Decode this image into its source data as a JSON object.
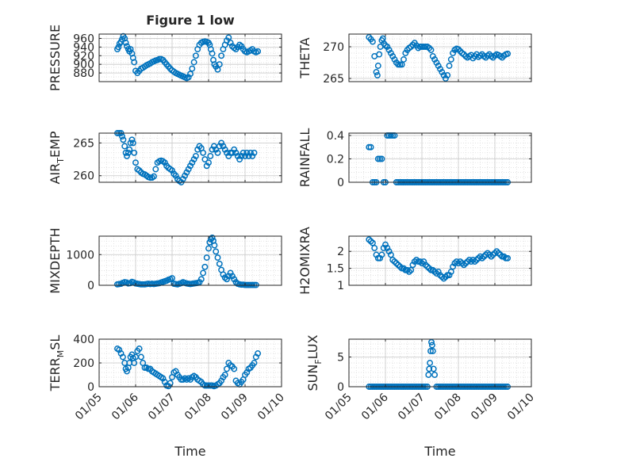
{
  "figure": {
    "title": "Figure 1 low",
    "marker_color": "#0072BD",
    "grid": true,
    "x_ticks": [
      "01/05",
      "01/06",
      "01/07",
      "01/08",
      "01/09",
      "01/10"
    ],
    "x_label": "Time"
  },
  "chart_data": [
    {
      "type": "scatter",
      "panel": "PRESSURE",
      "ylabel": "PRESSURE",
      "ylim": [
        860,
        970
      ],
      "yticks": [
        880,
        900,
        920,
        940,
        960
      ],
      "xlim": [
        0,
        5
      ],
      "x": [
        0.5,
        0.53,
        0.56,
        0.6,
        0.63,
        0.66,
        0.7,
        0.73,
        0.76,
        0.8,
        0.83,
        0.86,
        0.9,
        0.93,
        0.96,
        1.0,
        1.05,
        1.1,
        1.15,
        1.2,
        1.25,
        1.3,
        1.35,
        1.4,
        1.45,
        1.5,
        1.55,
        1.6,
        1.65,
        1.7,
        1.75,
        1.8,
        1.85,
        1.9,
        1.95,
        2.0,
        2.05,
        2.1,
        2.15,
        2.2,
        2.25,
        2.3,
        2.35,
        2.4,
        2.45,
        2.5,
        2.55,
        2.6,
        2.65,
        2.7,
        2.75,
        2.8,
        2.85,
        2.9,
        2.95,
        3.0,
        3.03,
        3.06,
        3.1,
        3.13,
        3.16,
        3.2,
        3.25,
        3.3,
        3.35,
        3.4,
        3.45,
        3.5,
        3.55,
        3.6,
        3.65,
        3.7,
        3.75,
        3.8,
        3.85,
        3.9,
        3.95,
        4.0,
        4.05,
        4.1,
        4.15,
        4.2,
        4.25,
        4.3,
        4.35
      ],
      "y": [
        935,
        940,
        948,
        952,
        958,
        965,
        960,
        950,
        942,
        935,
        930,
        935,
        925,
        915,
        905,
        885,
        880,
        885,
        890,
        892,
        895,
        898,
        900,
        902,
        905,
        907,
        909,
        910,
        912,
        912,
        910,
        905,
        900,
        895,
        890,
        886,
        883,
        880,
        878,
        876,
        874,
        872,
        870,
        868,
        870,
        878,
        890,
        905,
        920,
        935,
        945,
        950,
        952,
        953,
        952,
        950,
        945,
        935,
        925,
        910,
        900,
        895,
        888,
        900,
        920,
        935,
        945,
        955,
        962,
        950,
        942,
        938,
        935,
        940,
        945,
        942,
        935,
        930,
        928,
        930,
        932,
        935,
        930,
        928,
        930
      ]
    },
    {
      "type": "scatter",
      "panel": "THETA",
      "ylabel": "THETA",
      "ylim": [
        264.5,
        272
      ],
      "yticks": [
        265,
        270
      ],
      "xlim": [
        0,
        5
      ],
      "x": [
        0.55,
        0.6,
        0.65,
        0.7,
        0.75,
        0.78,
        0.8,
        0.83,
        0.86,
        0.9,
        0.93,
        0.96,
        1.0,
        1.05,
        1.1,
        1.15,
        1.2,
        1.25,
        1.3,
        1.35,
        1.4,
        1.45,
        1.5,
        1.55,
        1.6,
        1.65,
        1.7,
        1.75,
        1.8,
        1.85,
        1.9,
        1.95,
        2.0,
        2.05,
        2.1,
        2.15,
        2.2,
        2.25,
        2.3,
        2.35,
        2.4,
        2.45,
        2.5,
        2.55,
        2.6,
        2.65,
        2.7,
        2.75,
        2.8,
        2.85,
        2.9,
        2.95,
        3.0,
        3.05,
        3.1,
        3.15,
        3.2,
        3.25,
        3.3,
        3.35,
        3.4,
        3.45,
        3.5,
        3.55,
        3.6,
        3.65,
        3.7,
        3.75,
        3.8,
        3.85,
        3.9,
        3.95,
        4.0,
        4.05,
        4.1,
        4.15,
        4.2,
        4.25,
        4.3,
        4.35
      ],
      "y": [
        271.5,
        271.2,
        270.8,
        268.5,
        266,
        265.5,
        267,
        268.8,
        270,
        271,
        271.3,
        270.5,
        270.2,
        270,
        269.5,
        269,
        268.5,
        268,
        267.5,
        267.2,
        267.2,
        267.2,
        268,
        269,
        269.5,
        269.8,
        270,
        270.3,
        270.6,
        270.2,
        269.8,
        270,
        270,
        270,
        270,
        270,
        269.8,
        269.5,
        268.5,
        268,
        267.5,
        267,
        266.5,
        266,
        265.5,
        265,
        265.5,
        267,
        268,
        269,
        269.5,
        269.7,
        269.6,
        269.3,
        269,
        268.8,
        268.5,
        268.3,
        268.5,
        268.7,
        268.2,
        268.5,
        268.8,
        268.4,
        268.6,
        268.8,
        268.5,
        268.3,
        268.6,
        268.8,
        268.5,
        268.3,
        268.6,
        268.8,
        268.7,
        268.5,
        268.3,
        268.6,
        268.8,
        268.9
      ]
    },
    {
      "type": "scatter",
      "panel": "AIR_TEMP",
      "ylabel": "AIR_TEMP",
      "ylim": [
        259,
        266.5
      ],
      "yticks": [
        260,
        265
      ],
      "xlim": [
        0,
        5
      ],
      "x": [
        0.5,
        0.55,
        0.6,
        0.63,
        0.66,
        0.7,
        0.73,
        0.76,
        0.8,
        0.83,
        0.86,
        0.9,
        0.93,
        0.96,
        1.0,
        1.05,
        1.1,
        1.15,
        1.2,
        1.25,
        1.3,
        1.35,
        1.4,
        1.45,
        1.5,
        1.55,
        1.6,
        1.65,
        1.7,
        1.75,
        1.8,
        1.85,
        1.9,
        1.95,
        2.0,
        2.05,
        2.1,
        2.15,
        2.2,
        2.25,
        2.3,
        2.35,
        2.4,
        2.45,
        2.5,
        2.55,
        2.6,
        2.65,
        2.7,
        2.75,
        2.8,
        2.85,
        2.9,
        2.95,
        3.0,
        3.05,
        3.1,
        3.15,
        3.2,
        3.25,
        3.3,
        3.35,
        3.4,
        3.45,
        3.5,
        3.55,
        3.6,
        3.65,
        3.7,
        3.75,
        3.8,
        3.85,
        3.9,
        3.95,
        4.0,
        4.05,
        4.1,
        4.15,
        4.2,
        4.25
      ],
      "y": [
        266.5,
        266.5,
        266.5,
        266,
        265.5,
        264.5,
        263.5,
        263,
        263.5,
        264,
        265,
        265.5,
        265,
        263.5,
        262,
        261,
        260.8,
        260.5,
        260.3,
        260.2,
        260,
        259.8,
        259.7,
        259.7,
        259.9,
        261,
        262,
        262.2,
        262.3,
        262.2,
        262,
        261.5,
        261.2,
        261,
        260.8,
        260.3,
        260,
        259.5,
        259.2,
        259,
        259.5,
        260,
        260.5,
        261,
        261.5,
        262,
        262.5,
        263,
        264,
        264.5,
        264.2,
        263.5,
        262.5,
        261.5,
        262,
        263,
        264,
        264.5,
        264,
        263.5,
        264.5,
        265,
        264.5,
        264,
        263.5,
        263,
        263.5,
        263.5,
        264,
        263.5,
        263,
        262.5,
        263,
        263.5,
        263,
        263.5,
        263,
        263.5,
        263,
        263.5
      ]
    },
    {
      "type": "scatter",
      "panel": "RAINFALL",
      "ylabel": "RAINFALL",
      "ylim": [
        0,
        0.42
      ],
      "yticks": [
        0,
        0.2,
        0.4
      ],
      "xlim": [
        0,
        5
      ],
      "x": [
        0.55,
        0.6,
        0.65,
        0.7,
        0.75,
        0.8,
        0.85,
        0.9,
        0.95,
        1.0,
        1.05,
        1.1,
        1.15,
        1.2,
        1.25,
        1.3,
        1.35,
        1.4,
        1.45,
        1.5,
        1.55,
        1.6,
        1.65,
        1.7,
        1.75,
        1.8,
        1.85,
        1.9,
        1.95,
        2.0,
        2.05,
        2.1,
        2.15,
        2.2,
        2.25,
        2.3,
        2.35,
        2.4,
        2.45,
        2.5,
        2.55,
        2.6,
        2.65,
        2.7,
        2.75,
        2.8,
        2.85,
        2.9,
        2.95,
        3.0,
        3.05,
        3.1,
        3.15,
        3.2,
        3.25,
        3.3,
        3.35,
        3.4,
        3.45,
        3.5,
        3.55,
        3.6,
        3.65,
        3.7,
        3.75,
        3.8,
        3.85,
        3.9,
        3.95,
        4.0,
        4.05,
        4.1,
        4.15,
        4.2,
        4.25,
        4.3,
        4.35
      ],
      "y": [
        0.3,
        0.3,
        0,
        0,
        0,
        0.2,
        0.2,
        0.2,
        0,
        0,
        0.4,
        0.4,
        0.4,
        0.4,
        0.4,
        0,
        0,
        0,
        0,
        0,
        0,
        0,
        0,
        0,
        0,
        0,
        0,
        0,
        0,
        0,
        0,
        0,
        0,
        0,
        0,
        0,
        0,
        0,
        0,
        0,
        0,
        0,
        0,
        0,
        0,
        0,
        0,
        0,
        0,
        0,
        0,
        0,
        0,
        0,
        0,
        0,
        0,
        0,
        0,
        0,
        0,
        0,
        0,
        0,
        0,
        0,
        0,
        0,
        0,
        0,
        0,
        0,
        0,
        0,
        0,
        0,
        0
      ]
    },
    {
      "type": "scatter",
      "panel": "MIXDEPTH",
      "ylabel": "MIXDEPTH",
      "ylim": [
        0,
        1600
      ],
      "yticks": [
        0,
        1000
      ],
      "xlim": [
        0,
        5
      ],
      "x": [
        0.5,
        0.55,
        0.6,
        0.65,
        0.7,
        0.75,
        0.8,
        0.85,
        0.9,
        0.95,
        1.0,
        1.05,
        1.1,
        1.15,
        1.2,
        1.25,
        1.3,
        1.35,
        1.4,
        1.45,
        1.5,
        1.55,
        1.6,
        1.65,
        1.7,
        1.75,
        1.8,
        1.85,
        1.9,
        1.95,
        2.0,
        2.05,
        2.1,
        2.15,
        2.2,
        2.25,
        2.3,
        2.35,
        2.4,
        2.45,
        2.5,
        2.55,
        2.6,
        2.65,
        2.7,
        2.75,
        2.8,
        2.85,
        2.9,
        2.95,
        3.0,
        3.03,
        3.06,
        3.1,
        3.13,
        3.16,
        3.2,
        3.25,
        3.3,
        3.35,
        3.4,
        3.45,
        3.5,
        3.55,
        3.6,
        3.65,
        3.7,
        3.75,
        3.8,
        3.85,
        3.9,
        3.95,
        4.0,
        4.05,
        4.1,
        4.15,
        4.2,
        4.25,
        4.3
      ],
      "y": [
        30,
        40,
        50,
        80,
        100,
        90,
        60,
        70,
        110,
        90,
        60,
        50,
        40,
        30,
        30,
        30,
        40,
        50,
        40,
        50,
        40,
        50,
        60,
        70,
        90,
        110,
        130,
        150,
        180,
        200,
        230,
        50,
        40,
        30,
        50,
        70,
        100,
        80,
        60,
        50,
        40,
        50,
        60,
        70,
        80,
        100,
        200,
        400,
        600,
        900,
        1200,
        1400,
        1500,
        1550,
        1450,
        1300,
        1100,
        900,
        700,
        500,
        350,
        250,
        200,
        300,
        400,
        300,
        200,
        100,
        50,
        30,
        20,
        20,
        10,
        10,
        10,
        10,
        10,
        10,
        10
      ]
    },
    {
      "type": "scatter",
      "panel": "H2OMIXRA",
      "ylabel": "H2OMIXRA",
      "ylim": [
        1,
        2.45
      ],
      "yticks": [
        1,
        1.5,
        2
      ],
      "xlim": [
        0,
        5
      ],
      "x": [
        0.55,
        0.6,
        0.65,
        0.7,
        0.75,
        0.8,
        0.85,
        0.9,
        0.95,
        1.0,
        1.05,
        1.1,
        1.15,
        1.2,
        1.25,
        1.3,
        1.35,
        1.4,
        1.45,
        1.5,
        1.55,
        1.6,
        1.65,
        1.7,
        1.75,
        1.8,
        1.85,
        1.9,
        1.95,
        2.0,
        2.05,
        2.1,
        2.15,
        2.2,
        2.25,
        2.3,
        2.35,
        2.4,
        2.45,
        2.5,
        2.55,
        2.6,
        2.65,
        2.7,
        2.75,
        2.8,
        2.85,
        2.9,
        2.95,
        3.0,
        3.05,
        3.1,
        3.15,
        3.2,
        3.25,
        3.3,
        3.35,
        3.4,
        3.45,
        3.5,
        3.55,
        3.6,
        3.65,
        3.7,
        3.75,
        3.8,
        3.85,
        3.9,
        3.95,
        4.0,
        4.05,
        4.1,
        4.15,
        4.2,
        4.25,
        4.3,
        4.35
      ],
      "y": [
        2.35,
        2.3,
        2.25,
        2.1,
        1.9,
        1.8,
        1.8,
        1.9,
        2.1,
        2.2,
        2.1,
        2,
        1.9,
        1.75,
        1.7,
        1.65,
        1.6,
        1.55,
        1.5,
        1.5,
        1.45,
        1.45,
        1.4,
        1.45,
        1.6,
        1.7,
        1.75,
        1.7,
        1.7,
        1.65,
        1.7,
        1.6,
        1.55,
        1.5,
        1.45,
        1.45,
        1.4,
        1.35,
        1.4,
        1.3,
        1.25,
        1.2,
        1.25,
        1.3,
        1.3,
        1.4,
        1.55,
        1.65,
        1.7,
        1.65,
        1.7,
        1.65,
        1.6,
        1.65,
        1.7,
        1.75,
        1.7,
        1.75,
        1.7,
        1.75,
        1.8,
        1.85,
        1.8,
        1.85,
        1.9,
        1.95,
        1.9,
        1.85,
        1.9,
        1.95,
        2,
        1.95,
        1.9,
        1.85,
        1.85,
        1.8,
        1.8
      ]
    },
    {
      "type": "scatter",
      "panel": "TERR_MSL",
      "ylabel": "TERR_MSL",
      "ylim": [
        0,
        400
      ],
      "yticks": [
        0,
        200,
        400
      ],
      "xlim": [
        0,
        5
      ],
      "x": [
        0.5,
        0.55,
        0.6,
        0.65,
        0.7,
        0.73,
        0.76,
        0.8,
        0.83,
        0.86,
        0.9,
        0.93,
        0.96,
        1.0,
        1.05,
        1.1,
        1.15,
        1.2,
        1.25,
        1.3,
        1.35,
        1.4,
        1.45,
        1.5,
        1.55,
        1.6,
        1.65,
        1.7,
        1.75,
        1.8,
        1.85,
        1.9,
        1.95,
        2.0,
        2.05,
        2.1,
        2.15,
        2.2,
        2.25,
        2.3,
        2.35,
        2.4,
        2.45,
        2.5,
        2.55,
        2.6,
        2.65,
        2.7,
        2.75,
        2.8,
        2.85,
        2.9,
        2.95,
        3.0,
        3.05,
        3.1,
        3.15,
        3.2,
        3.25,
        3.3,
        3.35,
        3.4,
        3.45,
        3.5,
        3.55,
        3.6,
        3.65,
        3.7,
        3.75,
        3.8,
        3.85,
        3.9,
        3.95,
        4.0,
        4.05,
        4.1,
        4.15,
        4.2,
        4.25,
        4.3,
        4.35
      ],
      "y": [
        320,
        310,
        280,
        250,
        200,
        150,
        130,
        160,
        200,
        250,
        270,
        240,
        200,
        250,
        300,
        320,
        250,
        200,
        160,
        160,
        150,
        150,
        130,
        120,
        110,
        100,
        90,
        80,
        70,
        40,
        10,
        5,
        30,
        80,
        120,
        130,
        100,
        80,
        60,
        60,
        70,
        60,
        70,
        60,
        80,
        90,
        80,
        60,
        50,
        40,
        20,
        10,
        10,
        10,
        10,
        10,
        5,
        10,
        20,
        30,
        50,
        80,
        100,
        150,
        200,
        180,
        170,
        150,
        50,
        30,
        20,
        40,
        60,
        100,
        120,
        150,
        160,
        180,
        200,
        250,
        280
      ]
    },
    {
      "type": "scatter",
      "panel": "SUN_FLUX",
      "ylabel": "SUN_FLUX",
      "ylim": [
        0,
        8
      ],
      "yticks": [
        0,
        5
      ],
      "xlim": [
        0,
        5
      ],
      "x": [
        0.55,
        0.6,
        0.65,
        0.7,
        0.75,
        0.8,
        0.85,
        0.9,
        0.95,
        1.0,
        1.05,
        1.1,
        1.15,
        1.2,
        1.25,
        1.3,
        1.35,
        1.4,
        1.45,
        1.5,
        1.55,
        1.6,
        1.65,
        1.7,
        1.75,
        1.8,
        1.85,
        1.9,
        1.95,
        2.0,
        2.05,
        2.1,
        2.15,
        2.18,
        2.2,
        2.22,
        2.24,
        2.26,
        2.28,
        2.3,
        2.32,
        2.35,
        2.4,
        2.45,
        2.5,
        2.55,
        2.6,
        2.65,
        2.7,
        2.75,
        2.8,
        2.85,
        2.9,
        2.95,
        3.0,
        3.05,
        3.1,
        3.15,
        3.2,
        3.25,
        3.3,
        3.35,
        3.4,
        3.45,
        3.5,
        3.55,
        3.6,
        3.65,
        3.7,
        3.75,
        3.8,
        3.85,
        3.9,
        3.95,
        4.0,
        4.05,
        4.1,
        4.15,
        4.2,
        4.25,
        4.3,
        4.35
      ],
      "y": [
        0,
        0,
        0,
        0,
        0,
        0,
        0,
        0,
        0,
        0,
        0,
        0,
        0,
        0,
        0,
        0,
        0,
        0,
        0,
        0,
        0,
        0,
        0,
        0,
        0,
        0,
        0,
        0,
        0,
        0,
        0,
        0,
        0,
        2,
        3,
        4,
        6,
        7.5,
        7,
        6,
        3,
        2,
        0,
        0,
        0,
        0,
        0,
        0,
        0,
        0,
        0,
        0,
        0,
        0,
        0,
        0,
        0,
        0,
        0,
        0,
        0,
        0,
        0,
        0,
        0,
        0,
        0,
        0,
        0,
        0,
        0,
        0,
        0,
        0,
        0,
        0,
        0,
        0,
        0,
        0,
        0,
        0
      ]
    }
  ]
}
